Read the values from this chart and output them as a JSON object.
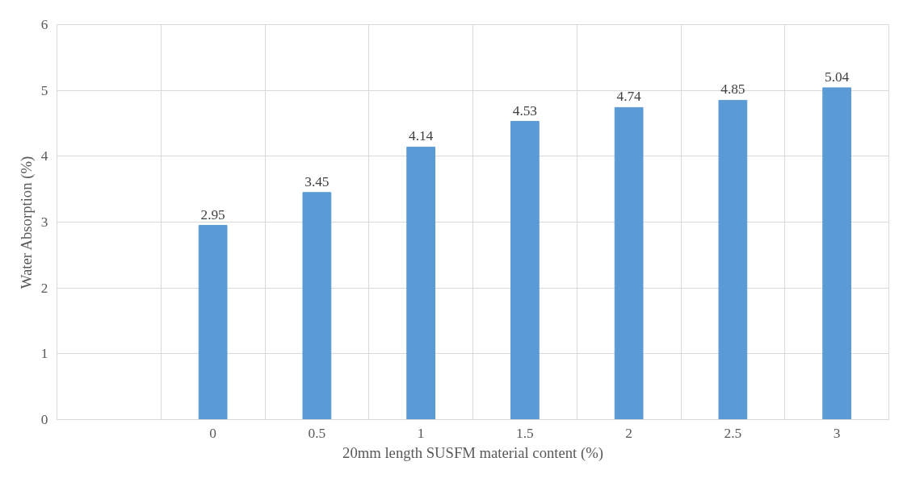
{
  "chart_data": {
    "type": "bar",
    "xlabel": "20mm length SUSFM material content (%)",
    "ylabel": "Water Absorption (%)",
    "categories": [
      null,
      "0",
      "0.5",
      "1",
      "1.5",
      "2",
      "2.5",
      "3"
    ],
    "values": [
      null,
      2.95,
      3.45,
      4.14,
      4.53,
      4.74,
      4.85,
      5.04
    ],
    "color": "#5b9bd5",
    "ylim": [
      0,
      6
    ],
    "yticks": [
      0,
      1,
      2,
      3,
      4,
      5,
      6
    ],
    "grid": true,
    "data_labels": true
  }
}
